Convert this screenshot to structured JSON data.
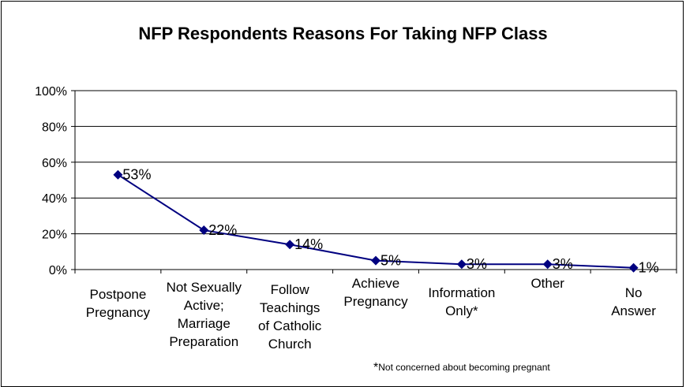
{
  "chart_data": {
    "type": "line",
    "title": "NFP Respondents Reasons For Taking NFP Class",
    "xlabel": "",
    "ylabel": "",
    "categories": [
      [
        "Postpone",
        "Pregnancy"
      ],
      [
        "Not Sexually",
        "Active;",
        "Marriage",
        "Preparation"
      ],
      [
        "Follow",
        "Teachings",
        "of Catholic",
        "Church"
      ],
      [
        "Achieve",
        "Pregnancy"
      ],
      [
        "Information",
        "Only*"
      ],
      [
        "Other"
      ],
      [
        "No",
        "Answer"
      ]
    ],
    "values": [
      53,
      22,
      14,
      5,
      3,
      3,
      1
    ],
    "data_labels": [
      "53%",
      "22%",
      "14%",
      "5%",
      "3%",
      "3%",
      "1%"
    ],
    "ylim": [
      0,
      100
    ],
    "yticks": [
      "0%",
      "20%",
      "40%",
      "60%",
      "80%",
      "100%"
    ],
    "grid": true,
    "legend": "none",
    "series_color": "#000080"
  },
  "footnote": {
    "mark": "*",
    "text": "Not concerned about becoming pregnant"
  }
}
